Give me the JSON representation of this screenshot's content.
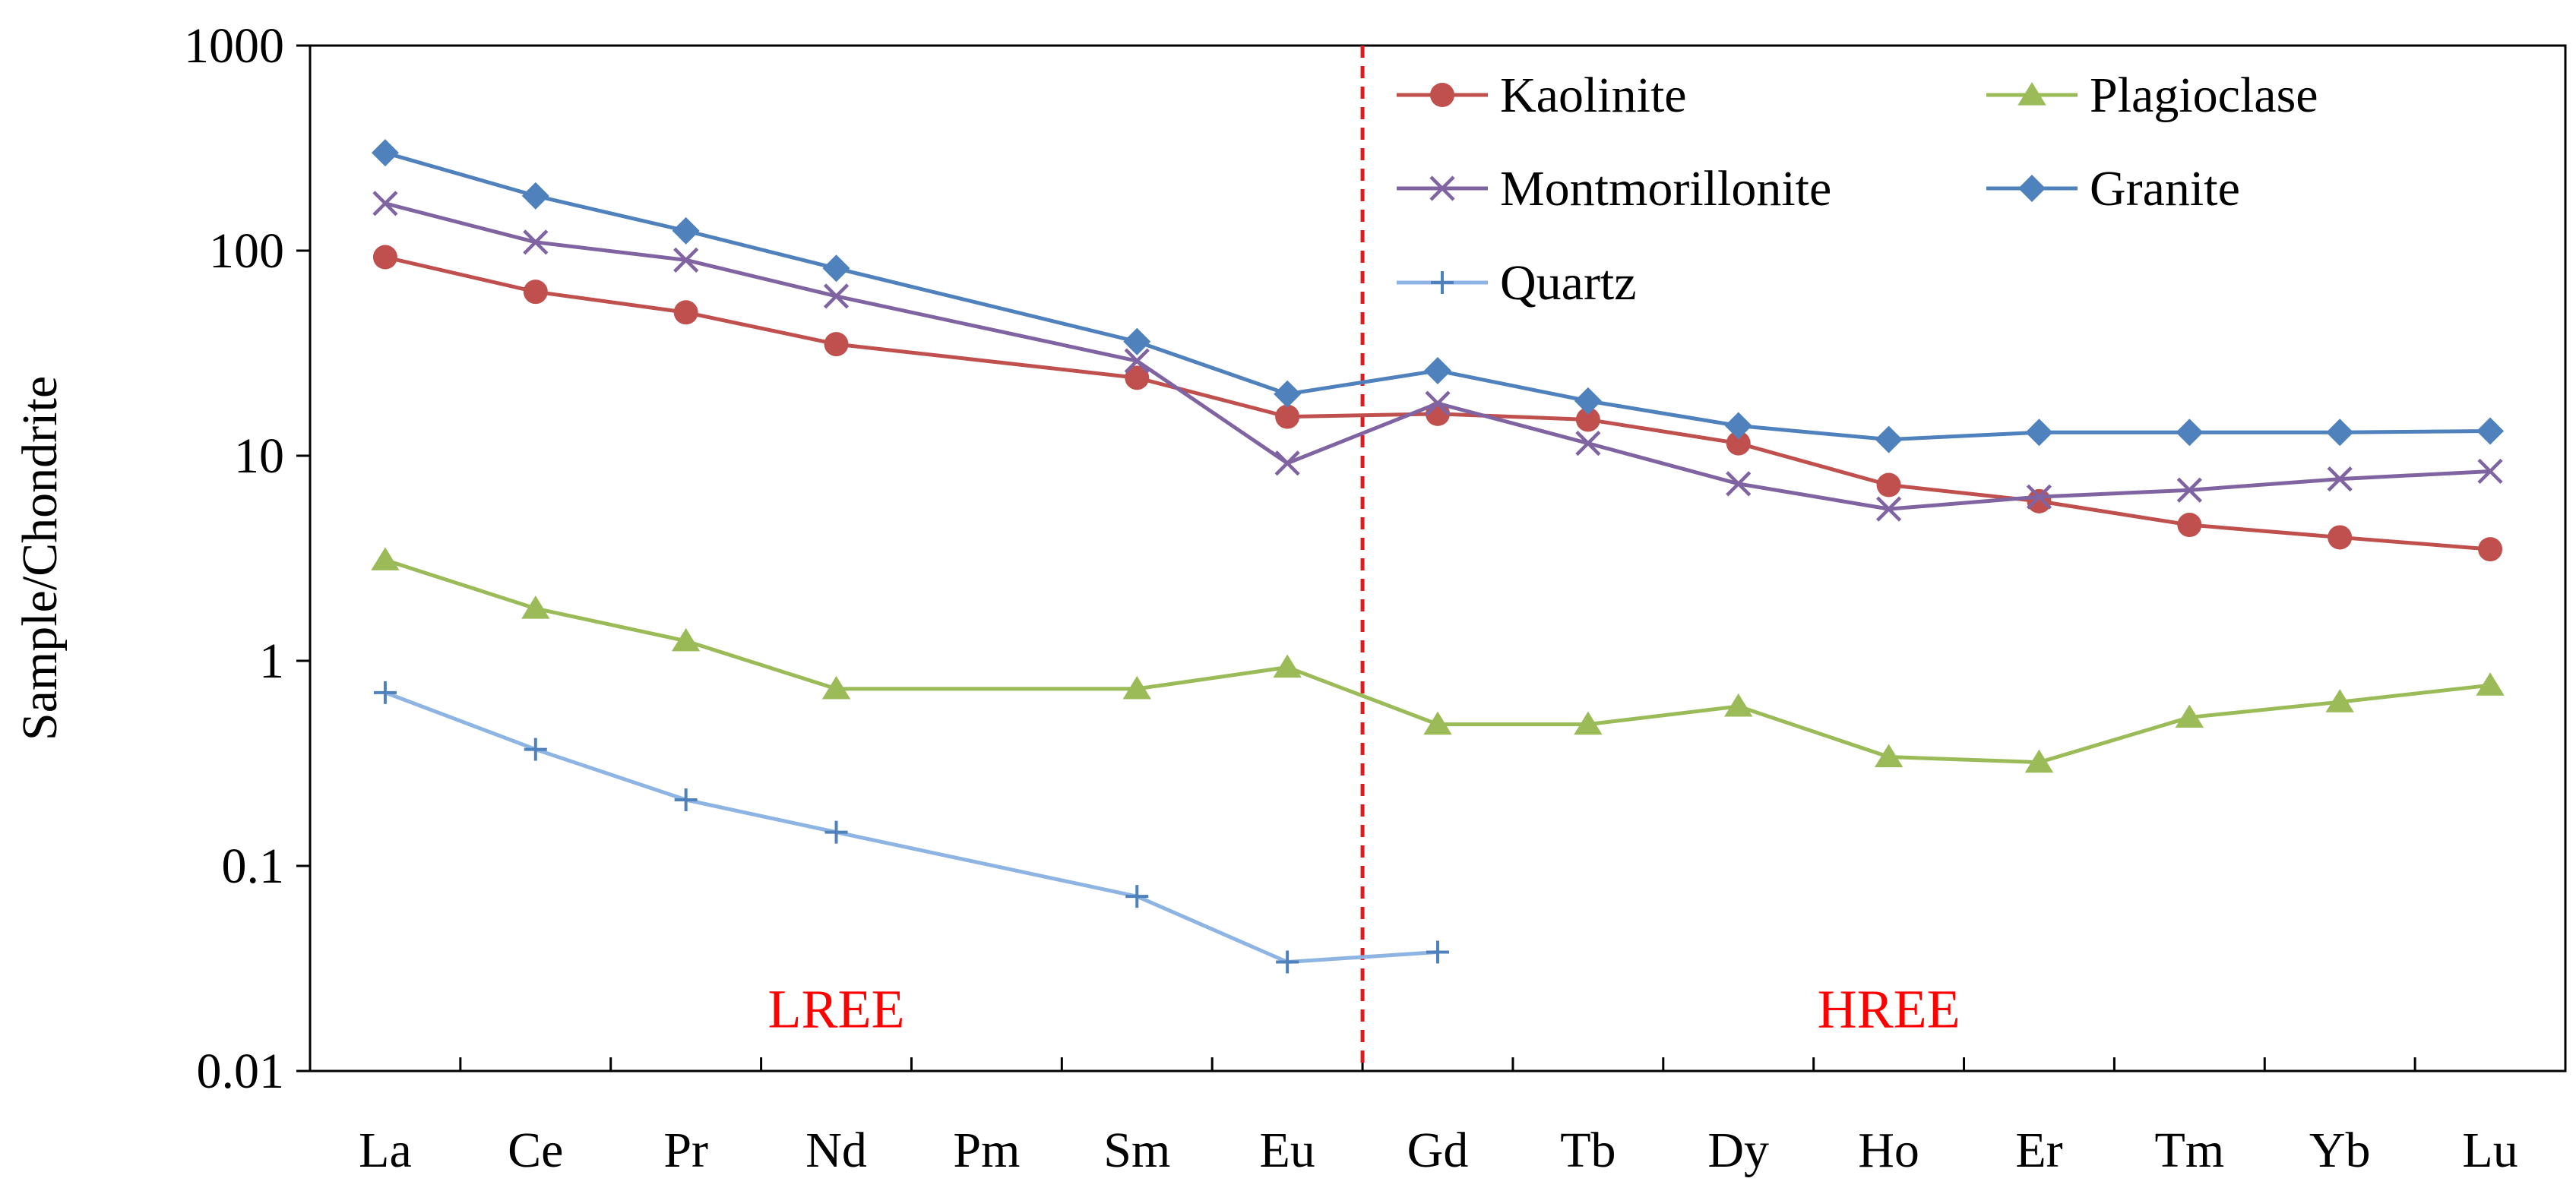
{
  "chart_data": {
    "type": "line",
    "title": "",
    "xlabel": "",
    "ylabel": "Sample/Chondrite",
    "yscale": "log",
    "ylim": [
      0.01,
      1000
    ],
    "yticks": [
      0.01,
      0.1,
      1,
      10,
      100,
      1000
    ],
    "ytick_labels": [
      "0.01",
      "0.1",
      "1",
      "10",
      "100",
      "1000"
    ],
    "grid": false,
    "categories": [
      "La",
      "Ce",
      "Pr",
      "Nd",
      "Pm",
      "Sm",
      "Eu",
      "Gd",
      "Tb",
      "Dy",
      "Ho",
      "Er",
      "Tm",
      "Yb",
      "Lu"
    ],
    "divider": {
      "between": [
        "Eu",
        "Gd"
      ],
      "color": "#e31a1c",
      "style": "dashed"
    },
    "region_labels": [
      {
        "text": "LREE",
        "x": "Nd",
        "y": 0.02,
        "color": "#ff0000"
      },
      {
        "text": "HREE",
        "x": "Ho",
        "y": 0.02,
        "color": "#ff0000"
      }
    ],
    "legend_position": "top-right",
    "series": [
      {
        "name": "Kaolinite",
        "color": "#c0504d",
        "marker": "circle",
        "values": [
          93,
          63,
          50,
          35,
          null,
          24,
          15.5,
          16,
          15,
          11.5,
          7.2,
          6,
          4.6,
          4.0,
          3.5
        ]
      },
      {
        "name": "Plagioclase",
        "color": "#9bbb59",
        "marker": "triangle",
        "values": [
          3.1,
          1.8,
          1.25,
          0.73,
          null,
          0.73,
          0.93,
          0.49,
          0.49,
          0.6,
          0.34,
          0.32,
          0.53,
          0.63,
          0.76
        ]
      },
      {
        "name": "Montmorillonite",
        "color": "#8064a2",
        "marker": "x",
        "values": [
          170,
          110,
          90,
          60,
          null,
          29,
          9.2,
          18,
          11.5,
          7.3,
          5.5,
          6.3,
          6.8,
          7.7,
          8.4
        ]
      },
      {
        "name": "Granite",
        "color": "#4f81bd",
        "marker": "diamond",
        "values": [
          300,
          185,
          125,
          82,
          null,
          36,
          20,
          26,
          18.5,
          14,
          12,
          13,
          13,
          13,
          13.2
        ]
      },
      {
        "name": "Quartz",
        "color": "#8db4e2",
        "marker": "plus",
        "values": [
          0.7,
          0.37,
          0.21,
          0.146,
          null,
          0.071,
          0.034,
          0.038,
          null,
          null,
          null,
          null,
          null,
          null,
          null
        ]
      }
    ]
  }
}
